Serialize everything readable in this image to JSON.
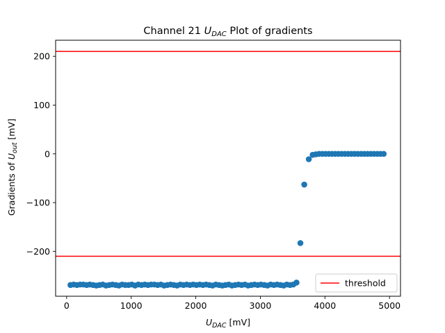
{
  "chart_data": {
    "type": "scatter",
    "title": {
      "prefix": "Channel 21 ",
      "var": "U",
      "sub": "DAC",
      "suffix": " Plot of gradients"
    },
    "xlabel": {
      "var": "U",
      "sub": "DAC",
      "suffix": " [mV]"
    },
    "ylabel": {
      "prefix": "Gradients of ",
      "var": "U",
      "sub": "out",
      "suffix": " [mV]"
    },
    "xlim": [
      -170,
      5170
    ],
    "ylim": [
      -292,
      233
    ],
    "xticks": [
      0,
      1000,
      2000,
      3000,
      4000,
      5000
    ],
    "xtick_labels": [
      "0",
      "1000",
      "2000",
      "3000",
      "4000",
      "5000"
    ],
    "yticks": [
      -200,
      -100,
      0,
      100,
      200
    ],
    "ytick_labels": [
      "−200",
      "−100",
      "0",
      "100",
      "200"
    ],
    "grid": false,
    "legend": {
      "placement": "lower-right",
      "entries": [
        {
          "label": "threshold",
          "color": "#ff0000"
        }
      ]
    },
    "thresholds": [
      210,
      -210
    ],
    "threshold_color": "#ff0000",
    "series": [
      {
        "color": "#1f77b4",
        "x": [
          60,
          110,
          160,
          210,
          260,
          310,
          360,
          410,
          460,
          510,
          560,
          610,
          660,
          710,
          760,
          810,
          860,
          910,
          960,
          1010,
          1060,
          1110,
          1160,
          1210,
          1260,
          1310,
          1360,
          1410,
          1460,
          1510,
          1560,
          1610,
          1660,
          1710,
          1760,
          1810,
          1860,
          1910,
          1960,
          2010,
          2060,
          2110,
          2160,
          2210,
          2260,
          2310,
          2360,
          2410,
          2460,
          2510,
          2560,
          2610,
          2660,
          2710,
          2760,
          2810,
          2860,
          2910,
          2960,
          3010,
          3060,
          3110,
          3160,
          3210,
          3260,
          3310,
          3360,
          3410,
          3460,
          3510,
          3560,
          3620,
          3680,
          3750,
          3810,
          3860,
          3910,
          3960,
          4010,
          4060,
          4110,
          4160,
          4210,
          4260,
          4310,
          4360,
          4410,
          4460,
          4510,
          4560,
          4610,
          4660,
          4710,
          4760,
          4810,
          4860,
          4910
        ],
        "y": [
          -269,
          -268,
          -269,
          -268,
          -268,
          -269,
          -268,
          -269,
          -270,
          -269,
          -268,
          -270,
          -269,
          -268,
          -269,
          -270,
          -268,
          -269,
          -269,
          -268,
          -270,
          -268,
          -269,
          -268,
          -269,
          -268,
          -268,
          -269,
          -268,
          -270,
          -269,
          -268,
          -269,
          -270,
          -268,
          -269,
          -268,
          -269,
          -268,
          -269,
          -268,
          -269,
          -268,
          -269,
          -270,
          -268,
          -269,
          -270,
          -269,
          -268,
          -270,
          -269,
          -268,
          -269,
          -268,
          -270,
          -269,
          -268,
          -269,
          -268,
          -269,
          -270,
          -268,
          -269,
          -268,
          -269,
          -270,
          -268,
          -269,
          -268,
          -264,
          -183,
          -63,
          -11,
          -2,
          -1,
          0,
          0,
          0,
          0,
          0,
          0,
          0,
          0,
          0,
          0,
          0,
          0,
          0,
          0,
          0,
          0,
          0,
          0,
          0,
          0,
          0
        ]
      }
    ]
  }
}
